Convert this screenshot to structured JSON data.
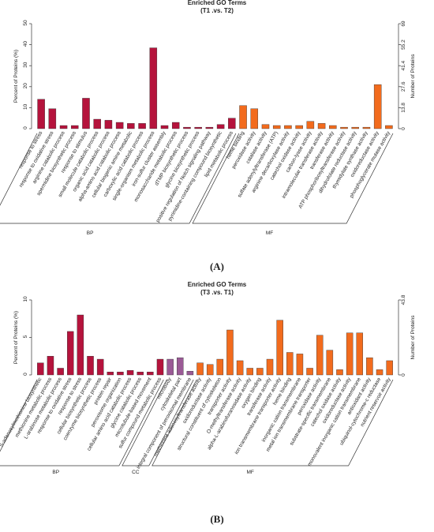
{
  "chart_data": [
    {
      "type": "bar",
      "title": "Enriched GO Terms",
      "subtitle": "(T1 .vs. T2)",
      "panel_label": "(A)",
      "ylabel": "Percent of Proteins (%)",
      "y2label": "Number of Proteins",
      "ylim": [
        0,
        50
      ],
      "yticks": [
        0,
        10,
        20,
        30,
        40,
        50
      ],
      "y2lim": [
        0,
        69
      ],
      "y2ticks": [
        0,
        13.8,
        27.6,
        41.4,
        55.2,
        69
      ],
      "groups": [
        {
          "name": "BP",
          "color": "#b5133c",
          "categories": [
            "response to stress",
            "response to oxidative stress",
            "arginine catabolic process",
            "spermidine biosynthetic process",
            "response to stimulus",
            "small molecule catabolic process",
            "organic acid catabolic process",
            "alpha-amino acid catabolic process",
            "cellular biogenic amine metabolic",
            "carboxylic acid catabolic process",
            "single-organism metabolic process",
            "iron-sulfur cluster assembly",
            "monosaccharide metabolic process",
            "dTMP biosynthetic process",
            "glycine biosynthetic process",
            "positive regulation of Notch signaling pathway",
            "pyrimidine-containing compound biosynthetic",
            "lipid metabolic process"
          ],
          "values": [
            14,
            9.5,
            1.5,
            1.5,
            14.5,
            4.5,
            4,
            3,
            2.5,
            2.5,
            38.5,
            1.5,
            3,
            0.7,
            0.7,
            0.7,
            2,
            5
          ]
        },
        {
          "name": "MF",
          "color": "#f26b1d",
          "categories": [
            "heme binding",
            "peroxidase activity",
            "catalase activity",
            "sulfate adenylyltransferase (ATP)",
            "arginine decarboxylase activity",
            "catechol oxidase activity",
            "carbon-lyase activity",
            "intramolecular transferase activity",
            "transferase activity",
            "ATP phosphoribosyltransferase activity",
            "dihydrofolate reductase activity",
            "thymidylate synthase activity",
            "oxidoreductase activity",
            "phosphoglycerate mutase activity"
          ],
          "values": [
            11,
            9.5,
            2,
            1.5,
            1.5,
            1.5,
            3.5,
            2.5,
            1.5,
            0.7,
            0.7,
            0.7,
            21,
            1.5
          ]
        }
      ]
    },
    {
      "type": "bar",
      "title": "Enriched GO Terms",
      "subtitle": "(T3 .vs. T1)",
      "panel_label": "(B)",
      "ylabel": "Percent of Proteins (%)",
      "y2label": "Number of Proteins",
      "ylim": [
        0,
        10
      ],
      "yticks": [
        0,
        5,
        10
      ],
      "y2lim": [
        0,
        43.8
      ],
      "y2ticks": [
        0,
        43.8
      ],
      "groups": [
        {
          "name": "BP",
          "color": "#b5133c",
          "categories": [
            "S-adenosylmethionine biosynthetic",
            "methionine metabolic process",
            "L-arabinose metabolic process",
            "response to oxidative stress",
            "response to stress",
            "cellular biosynthetic process",
            "coenzyme biosynthetic process",
            "protein repair",
            "peroxisome organization",
            "cellular amino acid catabolic process",
            "glycine catabolic process",
            "microtubule-based movement",
            "sulfur compound metabolic process"
          ],
          "values": [
            1.6,
            2.5,
            0.9,
            5.8,
            8,
            2.5,
            2.1,
            0.4,
            0.4,
            0.6,
            0.4,
            0.4,
            2.1
          ]
        },
        {
          "name": "CC",
          "color": "#9b5a96",
          "categories": [
            "microbody",
            "cytoskeletal part",
            "integral component of peroxisomal membrane"
          ],
          "values": [
            2.1,
            2.3,
            0.5
          ]
        },
        {
          "name": "MF",
          "color": "#f26b1d",
          "categories": [
            "methionine adenosyltransferase activity",
            "oxidoreductase activity",
            "structural constituent of cytoskeleton",
            "transporter activity",
            "O-methyltransferase activity",
            "alpha-L-arabinofuranosidase activity",
            "oxygen binding",
            "transferase activity",
            "ion transmembrane transporter activity",
            "heme binding",
            "inorganic cation transmembrane",
            "metal ion transmembrane transporter",
            "peroxidase activity",
            "substrate-specific transmembrane",
            "catechol oxidase activity",
            "oxidoreductase activity",
            "monovalent inorganic cation transmembrane",
            "antioxidant activity",
            "ubiquinol-cytochrome-c reductase",
            "nutrient reservoir activity"
          ],
          "values": [
            1.6,
            1.4,
            2.1,
            6,
            1.9,
            0.9,
            0.9,
            2.1,
            7.3,
            3,
            2.8,
            0.9,
            5.3,
            3.3,
            0.7,
            5.6,
            5.6,
            2.3,
            0.7,
            1.9
          ]
        }
      ]
    }
  ]
}
